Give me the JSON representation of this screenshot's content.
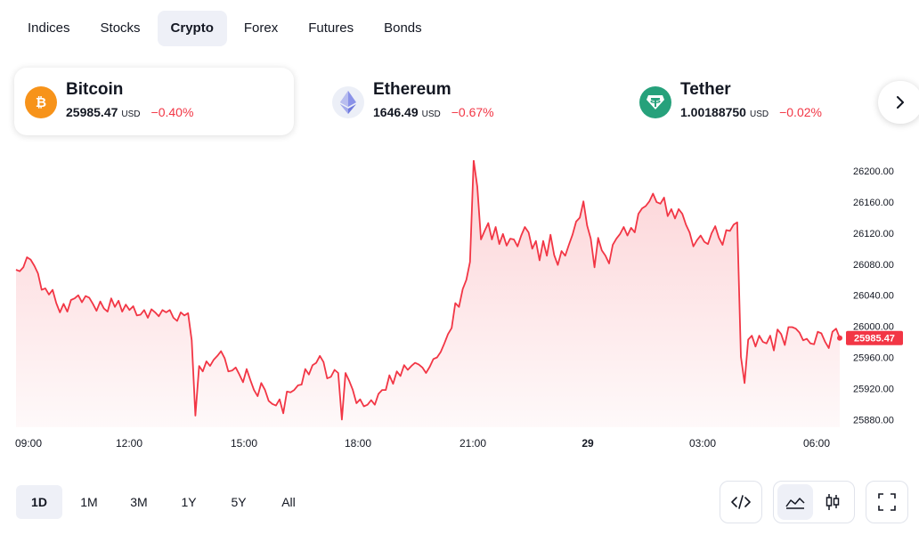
{
  "tabs": [
    {
      "label": "Indices",
      "active": false
    },
    {
      "label": "Stocks",
      "active": false
    },
    {
      "label": "Crypto",
      "active": true
    },
    {
      "label": "Forex",
      "active": false
    },
    {
      "label": "Futures",
      "active": false
    },
    {
      "label": "Bonds",
      "active": false
    }
  ],
  "cards": [
    {
      "name": "Bitcoin",
      "price": "25985.47",
      "currency": "USD",
      "change": "−0.40%",
      "icon": "bitcoin-icon",
      "color": "#f7931a",
      "selected": true
    },
    {
      "name": "Ethereum",
      "price": "1646.49",
      "currency": "USD",
      "change": "−0.67%",
      "icon": "ethereum-icon",
      "color": "#627eea",
      "selected": false
    },
    {
      "name": "Tether",
      "price": "1.00188750",
      "currency": "USD",
      "change": "−0.02%",
      "icon": "tether-icon",
      "color": "#26a17b",
      "selected": false
    }
  ],
  "next_icon": "chevron-right-icon",
  "chart_data": {
    "type": "area",
    "series": [
      {
        "values": [
          26073,
          26071,
          26076,
          26089,
          26086,
          26078,
          26068,
          26047,
          26049,
          26041,
          26047,
          26030,
          26018,
          26029,
          26019,
          26034,
          26036,
          26040,
          26031,
          26039,
          26037,
          26029,
          26020,
          26032,
          26023,
          26019,
          26036,
          26025,
          26033,
          26019,
          26028,
          26021,
          26026,
          26014,
          26015,
          26021,
          26011,
          26022,
          26018,
          26013,
          26021,
          26018,
          26021,
          26011,
          26007,
          26018,
          26014,
          26017,
          25982,
          25885,
          25949,
          25942,
          25955,
          25949,
          25957,
          25962,
          25968,
          25959,
          25942,
          25943,
          25947,
          25938,
          25928,
          25945,
          25931,
          25918,
          25910,
          25927,
          25918,
          25904,
          25900,
          25898,
          25906,
          25888,
          25916,
          25915,
          25918,
          25924,
          25925,
          25945,
          25938,
          25950,
          25953,
          25962,
          25954,
          25933,
          25935,
          25944,
          25940,
          25880,
          25940,
          25930,
          25918,
          25901,
          25906,
          25897,
          25899,
          25905,
          25899,
          25913,
          25918,
          25918,
          25937,
          25926,
          25942,
          25936,
          25950,
          25944,
          25949,
          25953,
          25951,
          25947,
          25940,
          25948,
          25958,
          25960,
          25967,
          25978,
          25990,
          25998,
          26030,
          26025,
          26048,
          26060,
          26083,
          26214,
          26180,
          26112,
          26123,
          26133,
          26112,
          26128,
          26106,
          26119,
          26104,
          26113,
          26112,
          26103,
          26117,
          26128,
          26121,
          26100,
          26110,
          26085,
          26110,
          26091,
          26118,
          26092,
          26079,
          26097,
          26091,
          26105,
          26118,
          26135,
          26140,
          26161,
          26130,
          26113,
          26076,
          26114,
          26098,
          26091,
          26081,
          26105,
          26113,
          26119,
          26128,
          26117,
          26127,
          26121,
          26145,
          26152,
          26155,
          26161,
          26171,
          26160,
          26158,
          26166,
          26142,
          26151,
          26139,
          26151,
          26145,
          26131,
          26121,
          26103,
          26111,
          26117,
          26109,
          26106,
          26120,
          26129,
          26114,
          26105,
          26124,
          26123,
          26131,
          26134,
          25961,
          25927,
          25983,
          25988,
          25974,
          25988,
          25980,
          25978,
          25988,
          25969,
          25996,
          25990,
          25976,
          25999,
          25999,
          25997,
          25992,
          25982,
          25984,
          25978,
          25977,
          25993,
          25991,
          25980,
          25972,
          25993,
          25997,
          25985
        ]
      }
    ],
    "x_ticks": [
      "09:00",
      "12:00",
      "15:00",
      "18:00",
      "21:00",
      "29",
      "03:00",
      "06:00"
    ],
    "y_ticks": [
      26200,
      26160,
      26120,
      26080,
      26040,
      26000,
      25960,
      25920,
      25880
    ],
    "ylim": [
      25870,
      26214
    ],
    "last_price_label": "25985.47",
    "line_color": "#f23645"
  },
  "ranges": [
    {
      "label": "1D",
      "active": true
    },
    {
      "label": "1M",
      "active": false
    },
    {
      "label": "3M",
      "active": false
    },
    {
      "label": "1Y",
      "active": false
    },
    {
      "label": "5Y",
      "active": false
    },
    {
      "label": "All",
      "active": false
    }
  ],
  "tools": {
    "embed_icon": "code-icon",
    "area_chart_icon": "area-chart-icon",
    "candles_icon": "candlestick-icon",
    "fullscreen_icon": "fullscreen-icon"
  }
}
